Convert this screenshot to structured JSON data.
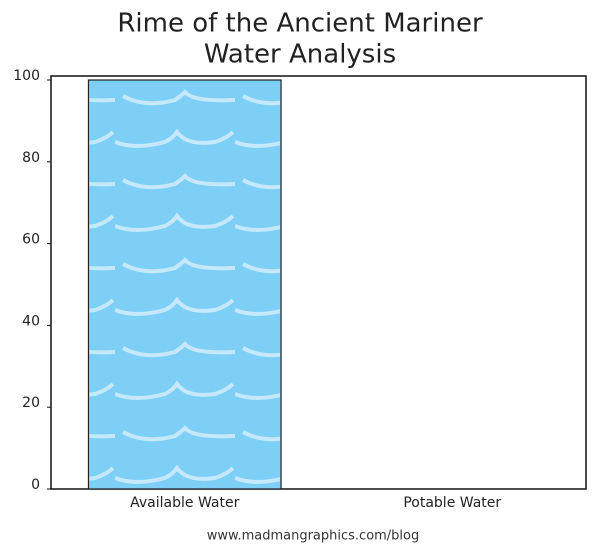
{
  "chart_data": {
    "type": "bar",
    "title": [
      "Rime of the Ancient Mariner",
      "Water Analysis"
    ],
    "categories": [
      "Available Water",
      "Potable Water"
    ],
    "values": [
      100,
      0
    ],
    "color": "#7ecff5",
    "ylim": [
      0,
      100
    ],
    "yticks": [
      0,
      20,
      40,
      60,
      80,
      100
    ],
    "grid": false,
    "source": "www.madmangraphics.com/blog"
  }
}
